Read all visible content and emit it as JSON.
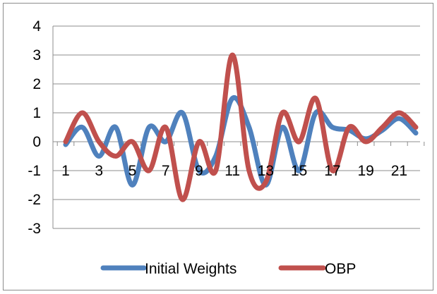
{
  "chart_data": {
    "type": "line",
    "title": "",
    "xlabel": "",
    "ylabel": "",
    "x": [
      1,
      2,
      3,
      4,
      5,
      6,
      7,
      8,
      9,
      10,
      11,
      12,
      13,
      14,
      15,
      16,
      17,
      18,
      19,
      20,
      21,
      22
    ],
    "x_tick_labels": [
      "1",
      "3",
      "5",
      "7",
      "9",
      "11",
      "13",
      "15",
      "17",
      "19",
      "21"
    ],
    "ylim": [
      -3,
      4
    ],
    "y_ticks": [
      4,
      3,
      2,
      1,
      0,
      -1,
      -2,
      -3
    ],
    "grid": "horizontal",
    "legend_position": "bottom",
    "series": [
      {
        "name": "Initial Weights",
        "color": "#4f81bd",
        "values": [
          -0.1,
          0.5,
          -0.5,
          0.5,
          -1.5,
          0.5,
          0,
          1,
          -1,
          -0.5,
          1.5,
          0.5,
          -1.5,
          0.5,
          -1,
          1,
          0.5,
          0.4,
          0.1,
          0.4,
          0.8,
          0.3
        ]
      },
      {
        "name": "OBP",
        "color": "#c0504d",
        "values": [
          0,
          1,
          0,
          -0.5,
          0,
          -1,
          0.5,
          -2,
          0,
          -1,
          3,
          -1,
          -1.4,
          1,
          0,
          1.5,
          -1,
          0.5,
          0,
          0.5,
          1,
          0.5
        ]
      }
    ]
  }
}
